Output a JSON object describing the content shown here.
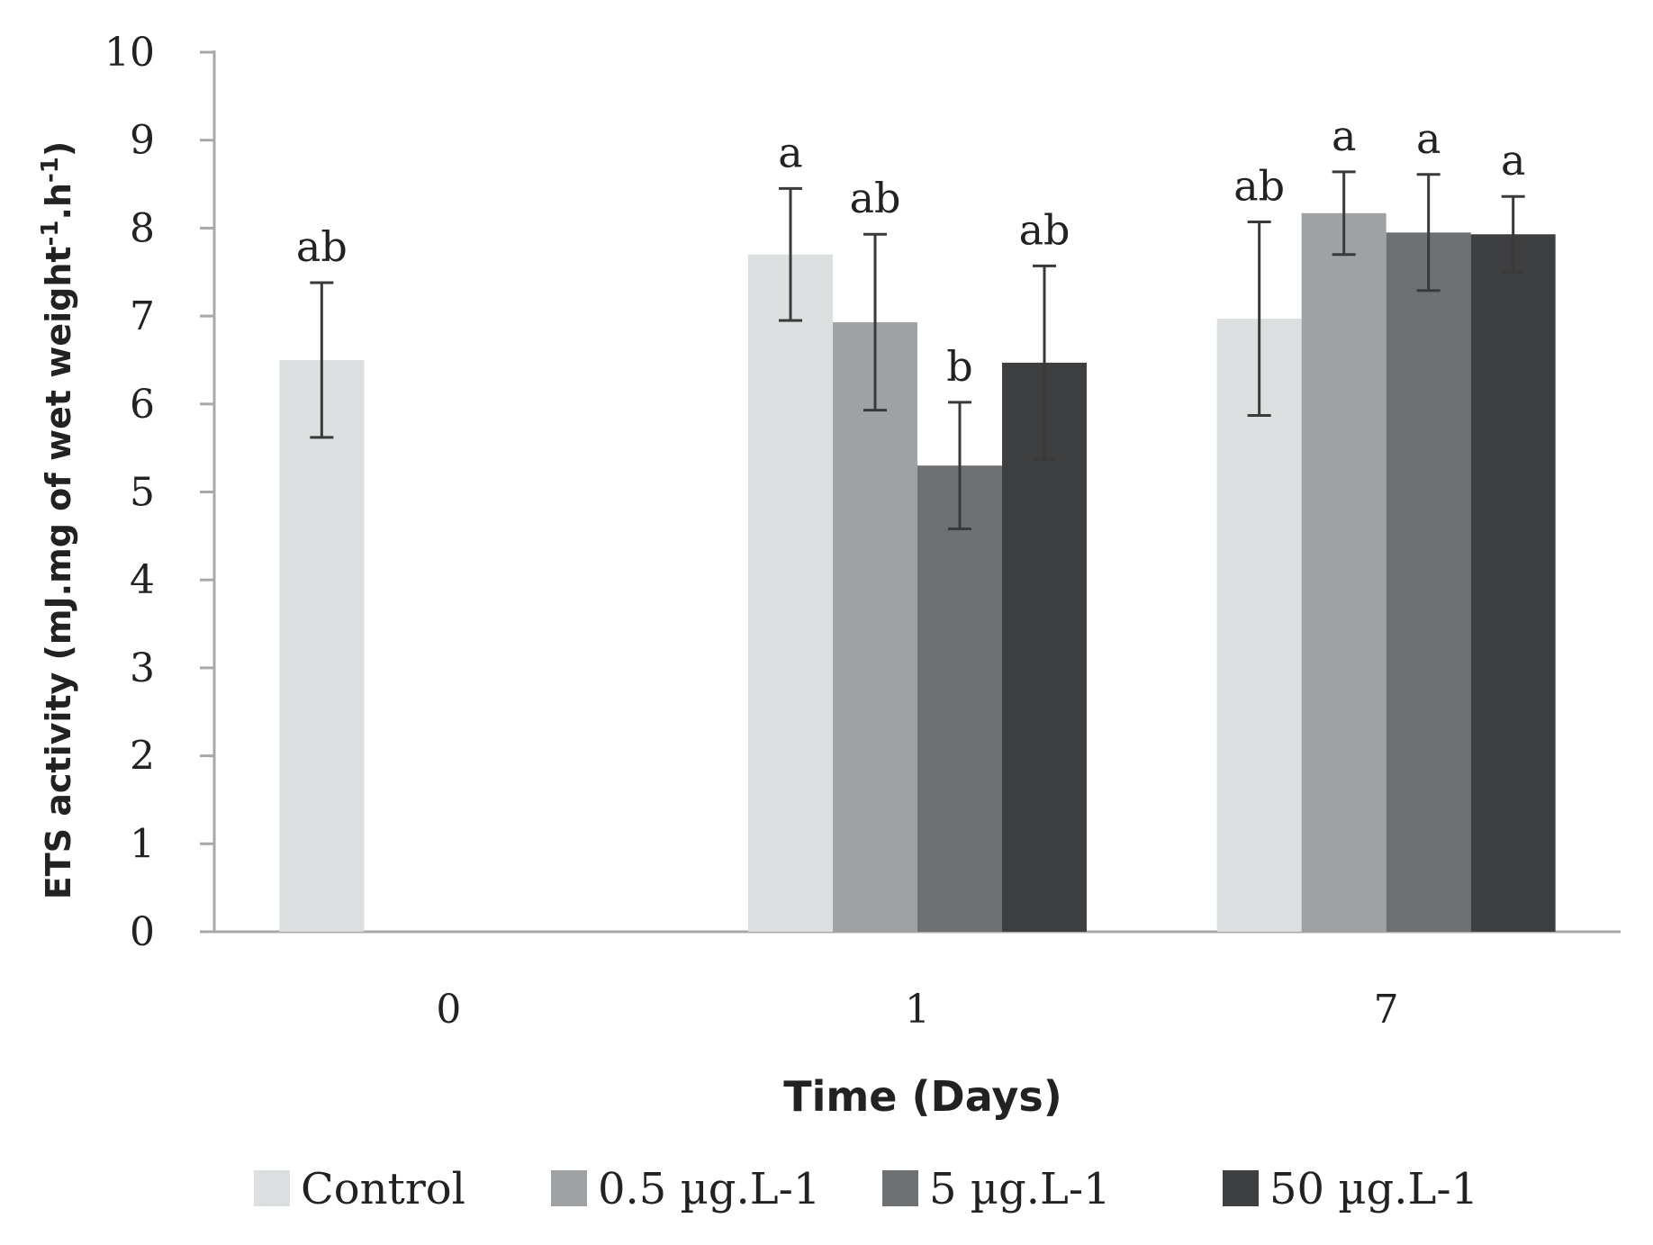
{
  "chart_data": {
    "type": "bar",
    "categories": [
      "0",
      "1",
      "7"
    ],
    "series": [
      {
        "name": "Control",
        "color": "#dcdfe0",
        "values": [
          6.5,
          7.7,
          6.97
        ],
        "errors": [
          0.88,
          0.75,
          1.1
        ],
        "labels": [
          "ab",
          "a",
          "ab"
        ]
      },
      {
        "name": "0.5  µg.L-1",
        "color": "#9ea2a5",
        "values": [
          null,
          6.93,
          8.17
        ],
        "errors": [
          null,
          1.0,
          0.47
        ],
        "labels": [
          null,
          "ab",
          "a"
        ]
      },
      {
        "name": "5  µg.L-1",
        "color": "#6d7174",
        "values": [
          null,
          5.3,
          7.95
        ],
        "errors": [
          null,
          0.72,
          0.66
        ],
        "labels": [
          null,
          "b",
          "a"
        ]
      },
      {
        "name": "50  µg.L-1",
        "color": "#3e3f41",
        "values": [
          null,
          6.47,
          7.93
        ],
        "errors": [
          null,
          1.1,
          0.43
        ],
        "labels": [
          null,
          "ab",
          "a"
        ]
      }
    ],
    "title": "",
    "xlabel": "Time (Days)",
    "ylabel": "ETS activity (mJ.mg of wet weight",
    "ylabel_sup1": "-1",
    "ylabel_mid": ".h",
    "ylabel_sup2": "-1",
    "ylabel_end": ")",
    "ylim": [
      0,
      10
    ],
    "yticks": [
      0,
      1,
      2,
      3,
      4,
      5,
      6,
      7,
      8,
      9,
      10
    ],
    "grid": false,
    "legend_position": "bottom"
  }
}
